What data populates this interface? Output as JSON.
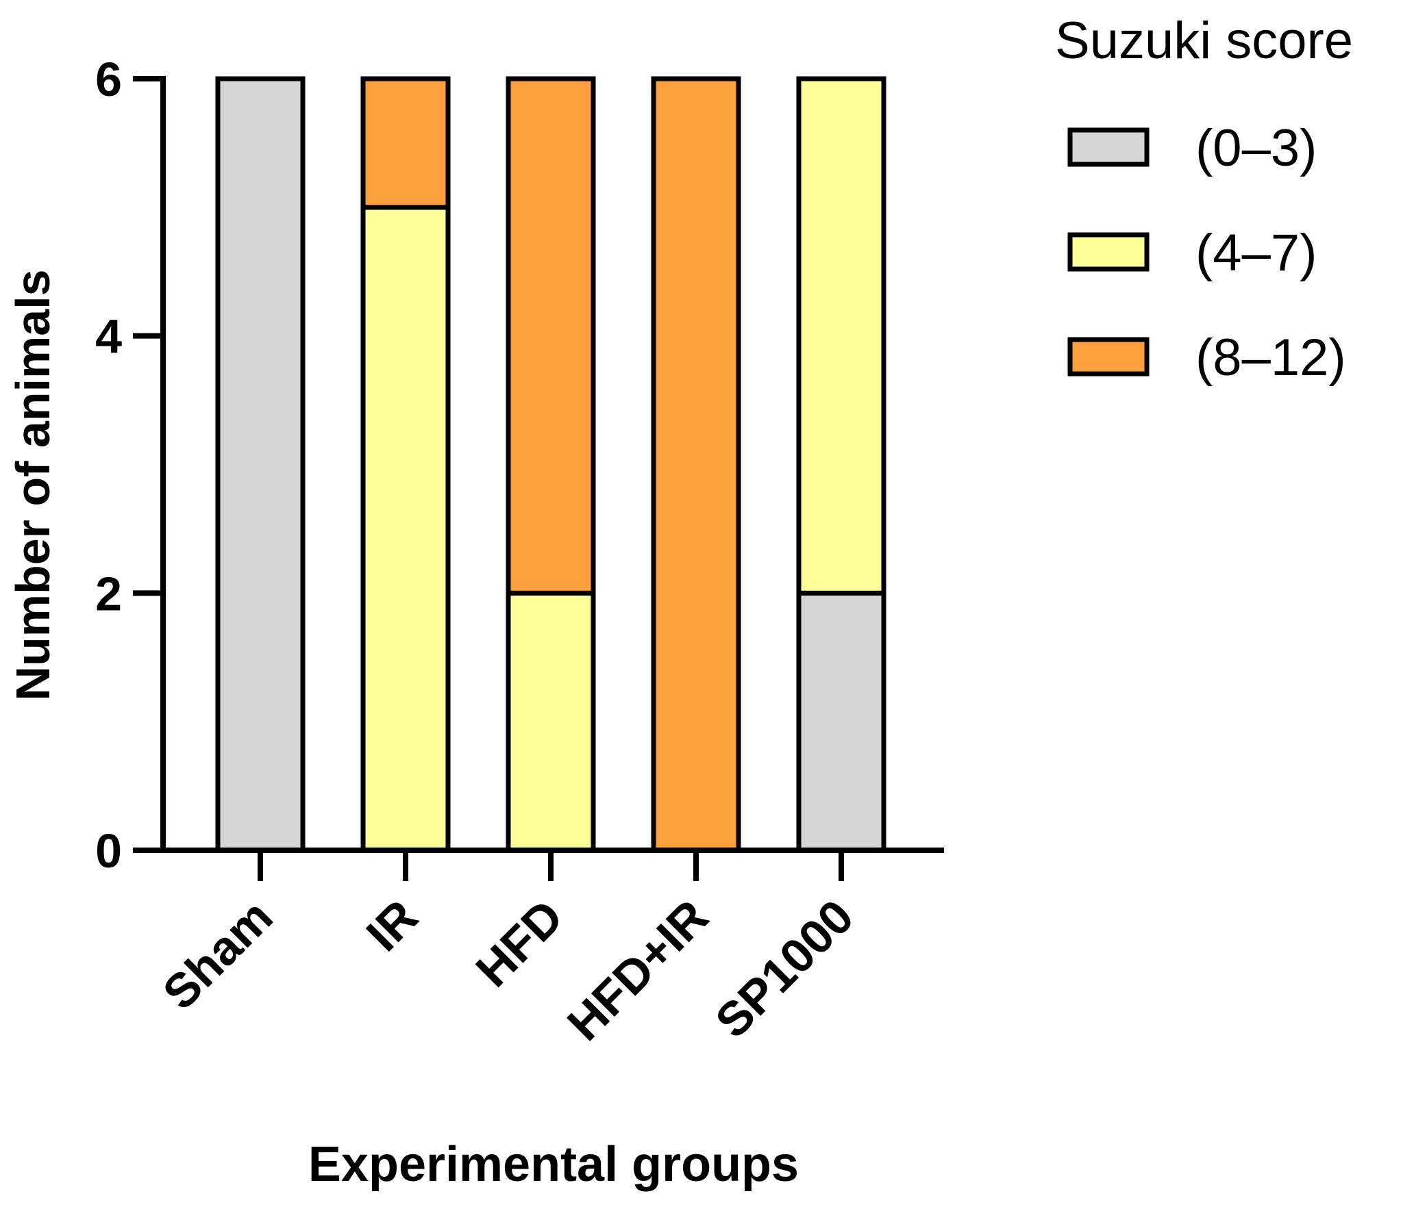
{
  "chart_data": {
    "type": "bar",
    "stacked": true,
    "title": "",
    "xlabel": "Experimental groups",
    "ylabel": "Number of animals",
    "ylim": [
      0,
      6
    ],
    "yticks": [
      0,
      2,
      4,
      6
    ],
    "categories": [
      "Sham",
      "IR",
      "HFD",
      "HFD+IR",
      "SP1000"
    ],
    "legend": {
      "title": "Suzuki score",
      "placement": "right"
    },
    "series": [
      {
        "name": "(0–3)",
        "color": "#d6d6d6",
        "values": [
          6,
          0,
          0,
          0,
          2
        ]
      },
      {
        "name": "(4–7)",
        "color": "#ffff99",
        "values": [
          0,
          5,
          2,
          0,
          4
        ]
      },
      {
        "name": "(8–12)",
        "color": "#ffa040",
        "values": [
          0,
          1,
          4,
          6,
          0
        ]
      }
    ],
    "grid": false
  }
}
